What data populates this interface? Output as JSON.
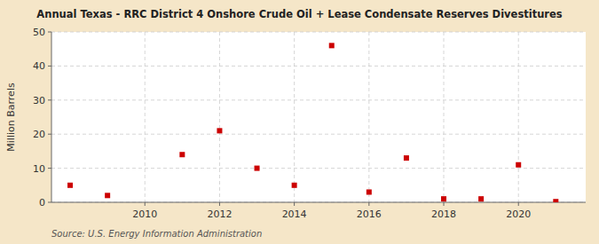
{
  "chart_data": {
    "type": "scatter",
    "title": "Annual Texas - RRC District 4 Onshore Crude Oil + Lease Condensate Reserves Divestitures",
    "ylabel": "Million Barrels",
    "annotations": [
      "Source: U.S. Energy Information Administration"
    ],
    "x": [
      2008,
      2009,
      2011,
      2012,
      2013,
      2014,
      2015,
      2016,
      2017,
      2018,
      2019,
      2020,
      2021
    ],
    "values": [
      5.0,
      2.0,
      14.0,
      21.0,
      10.0,
      5.0,
      46.0,
      3.0,
      13.0,
      1.0,
      1.0,
      11.0,
      0.2
    ],
    "color": "#cc0000",
    "marker": "square",
    "xlim": [
      2007.5,
      2021.8
    ],
    "ylim": [
      0,
      50
    ],
    "xticks": [
      2010,
      2012,
      2014,
      2016,
      2018,
      2020
    ],
    "yticks": [
      0,
      10,
      20,
      30,
      40,
      50
    ],
    "grid": true
  }
}
